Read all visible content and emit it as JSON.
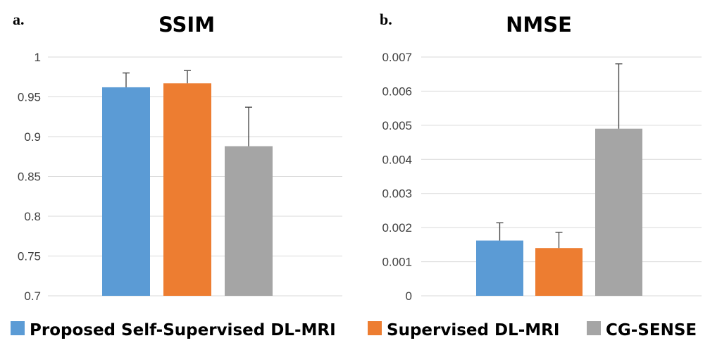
{
  "colors": {
    "proposed": "#5b9bd5",
    "supervised": "#ed7d31",
    "cg_sense": "#a5a5a5"
  },
  "legend": {
    "items": [
      {
        "label": "Proposed Self-Supervised DL-MRI",
        "color": "#5b9bd5"
      },
      {
        "label": "Supervised DL-MRI",
        "color": "#ed7d31"
      },
      {
        "label": "CG-SENSE",
        "color": "#a5a5a5"
      }
    ]
  },
  "chart_data": [
    {
      "panel_label": "a.",
      "type": "bar",
      "title": "SSIM",
      "xlabel": "",
      "ylabel": "",
      "ylim": [
        0.7,
        1.0
      ],
      "yticks": [
        0.7,
        0.75,
        0.8,
        0.85,
        0.9,
        0.95,
        1
      ],
      "ytick_labels": [
        "0.7",
        "0.75",
        "0.8",
        "0.85",
        "0.9",
        "0.95",
        "1"
      ],
      "grid": true,
      "series": [
        {
          "name": "Proposed Self-Supervised DL-MRI",
          "value": 0.962,
          "error": 0.018,
          "color": "#5b9bd5"
        },
        {
          "name": "Supervised DL-MRI",
          "value": 0.967,
          "error": 0.016,
          "color": "#ed7d31"
        },
        {
          "name": "CG-SENSE",
          "value": 0.888,
          "error": 0.049,
          "color": "#a5a5a5"
        }
      ]
    },
    {
      "panel_label": "b.",
      "type": "bar",
      "title": "NMSE",
      "xlabel": "",
      "ylabel": "",
      "ylim": [
        0,
        0.007
      ],
      "yticks": [
        0,
        0.001,
        0.002,
        0.003,
        0.004,
        0.005,
        0.006,
        0.007
      ],
      "ytick_labels": [
        "0",
        "0.001",
        "0.002",
        "0.003",
        "0.004",
        "0.005",
        "0.006",
        "0.007"
      ],
      "grid": true,
      "series": [
        {
          "name": "Proposed Self-Supervised DL-MRI",
          "value": 0.00162,
          "error": 0.00052,
          "color": "#5b9bd5"
        },
        {
          "name": "Supervised DL-MRI",
          "value": 0.0014,
          "error": 0.00046,
          "color": "#ed7d31"
        },
        {
          "name": "CG-SENSE",
          "value": 0.0049,
          "error": 0.0019,
          "color": "#a5a5a5"
        }
      ]
    }
  ]
}
